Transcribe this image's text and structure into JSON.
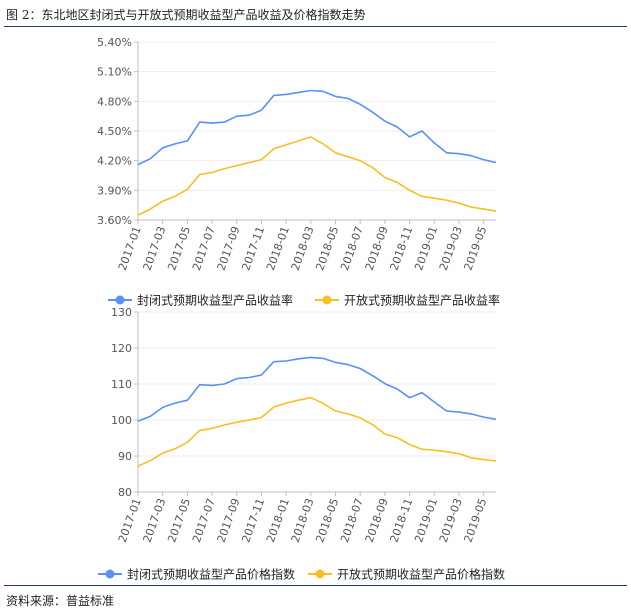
{
  "figure_title": "图 2：东北地区封闭式与开放式预期收益型产品收益及价格指数走势",
  "source": "资料来源：普益标准",
  "colors": {
    "closed": "#5b8ff9",
    "open": "#f6c022",
    "axis": "#bfbfbf",
    "grid": "#eeeeee",
    "text": "#555555"
  },
  "chart_data": [
    {
      "type": "line",
      "title": "",
      "xlabel": "",
      "ylabel": "",
      "x": [
        "2017-01",
        "2017-02",
        "2017-03",
        "2017-04",
        "2017-05",
        "2017-06",
        "2017-07",
        "2017-08",
        "2017-09",
        "2017-10",
        "2017-11",
        "2017-12",
        "2018-01",
        "2018-02",
        "2018-03",
        "2018-04",
        "2018-05",
        "2018-06",
        "2018-07",
        "2018-08",
        "2018-09",
        "2018-10",
        "2018-11",
        "2018-12",
        "2019-01",
        "2019-02",
        "2019-03",
        "2019-04",
        "2019-05",
        "2019-06"
      ],
      "xticks": [
        "2017-01",
        "2017-03",
        "2017-05",
        "2017-07",
        "2017-09",
        "2017-11",
        "2018-01",
        "2018-03",
        "2018-05",
        "2018-07",
        "2018-09",
        "2018-11",
        "2019-01",
        "2019-03",
        "2019-05"
      ],
      "ylim": [
        3.6,
        5.4
      ],
      "yticks": [
        "3.60%",
        "3.90%",
        "4.20%",
        "4.50%",
        "4.80%",
        "5.10%",
        "5.40%"
      ],
      "legend_position": "bottom",
      "series": [
        {
          "name": "封闭式预期收益型产品收益率",
          "color": "#5b8ff9",
          "values": [
            4.16,
            4.22,
            4.33,
            4.37,
            4.4,
            4.59,
            4.58,
            4.59,
            4.65,
            4.66,
            4.71,
            4.86,
            4.87,
            4.89,
            4.91,
            4.9,
            4.85,
            4.83,
            4.77,
            4.69,
            4.6,
            4.54,
            4.44,
            4.5,
            4.38,
            4.28,
            4.27,
            4.25,
            4.21,
            4.18
          ]
        },
        {
          "name": "开放式预期收益型产品收益率",
          "color": "#f6c022",
          "values": [
            3.65,
            3.71,
            3.79,
            3.84,
            3.91,
            4.06,
            4.08,
            4.12,
            4.15,
            4.18,
            4.21,
            4.32,
            4.36,
            4.4,
            4.44,
            4.37,
            4.28,
            4.24,
            4.2,
            4.13,
            4.03,
            3.98,
            3.9,
            3.84,
            3.82,
            3.8,
            3.77,
            3.73,
            3.71,
            3.69
          ]
        }
      ]
    },
    {
      "type": "line",
      "title": "",
      "xlabel": "",
      "ylabel": "",
      "x": [
        "2017-01",
        "2017-02",
        "2017-03",
        "2017-04",
        "2017-05",
        "2017-06",
        "2017-07",
        "2017-08",
        "2017-09",
        "2017-10",
        "2017-11",
        "2017-12",
        "2018-01",
        "2018-02",
        "2018-03",
        "2018-04",
        "2018-05",
        "2018-06",
        "2018-07",
        "2018-08",
        "2018-09",
        "2018-10",
        "2018-11",
        "2018-12",
        "2019-01",
        "2019-02",
        "2019-03",
        "2019-04",
        "2019-05",
        "2019-06"
      ],
      "xticks": [
        "2017-01",
        "2017-03",
        "2017-05",
        "2017-07",
        "2017-09",
        "2017-11",
        "2018-01",
        "2018-03",
        "2018-05",
        "2018-07",
        "2018-09",
        "2018-11",
        "2019-01",
        "2019-03",
        "2019-05"
      ],
      "ylim": [
        80,
        130
      ],
      "yticks": [
        "80",
        "90",
        "100",
        "110",
        "120",
        "130"
      ],
      "legend_position": "bottom",
      "series": [
        {
          "name": "封闭式预期收益型产品价格指数",
          "color": "#5b8ff9",
          "values": [
            99.7,
            101.0,
            103.5,
            104.7,
            105.5,
            109.8,
            109.6,
            110.0,
            111.5,
            111.8,
            112.5,
            116.2,
            116.4,
            117.0,
            117.4,
            117.1,
            116.0,
            115.4,
            114.3,
            112.3,
            110.1,
            108.6,
            106.2,
            107.6,
            105.0,
            102.5,
            102.2,
            101.7,
            100.8,
            100.2
          ]
        },
        {
          "name": "开放式预期收益型产品价格指数",
          "color": "#f6c022",
          "values": [
            87.2,
            88.7,
            90.8,
            92.0,
            93.8,
            97.1,
            97.7,
            98.6,
            99.4,
            100.0,
            100.7,
            103.6,
            104.7,
            105.5,
            106.2,
            104.6,
            102.5,
            101.7,
            100.6,
            98.7,
            96.1,
            95.1,
            93.2,
            91.9,
            91.6,
            91.2,
            90.6,
            89.5,
            89.0,
            88.6
          ]
        }
      ]
    }
  ]
}
